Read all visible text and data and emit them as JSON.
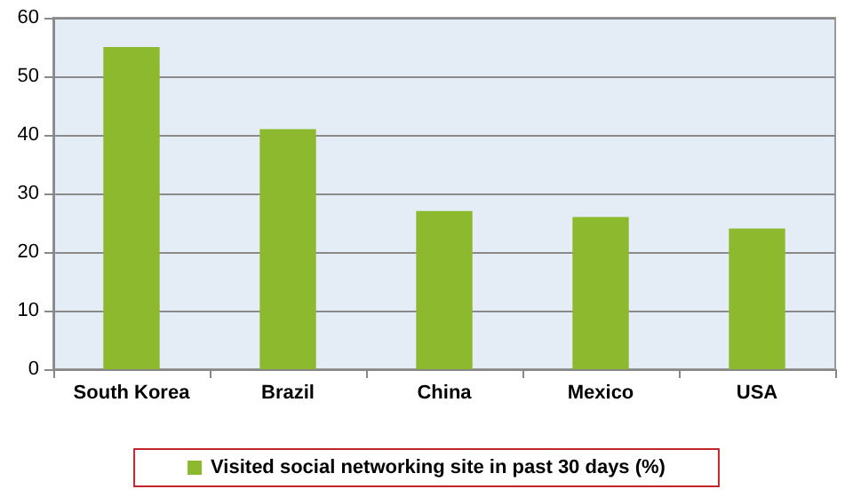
{
  "chart_data": {
    "type": "bar",
    "categories": [
      "South Korea",
      "Brazil",
      "China",
      "Mexico",
      "USA"
    ],
    "series": [
      {
        "name": "Visited social networking site in past 30 days (%)",
        "color": "#8db92e",
        "values": [
          55,
          41,
          27,
          26,
          24
        ]
      }
    ],
    "ylim": [
      0,
      60
    ],
    "yticks": [
      0,
      10,
      20,
      30,
      40,
      50,
      60
    ],
    "grid": "y",
    "legend": "bottom"
  }
}
